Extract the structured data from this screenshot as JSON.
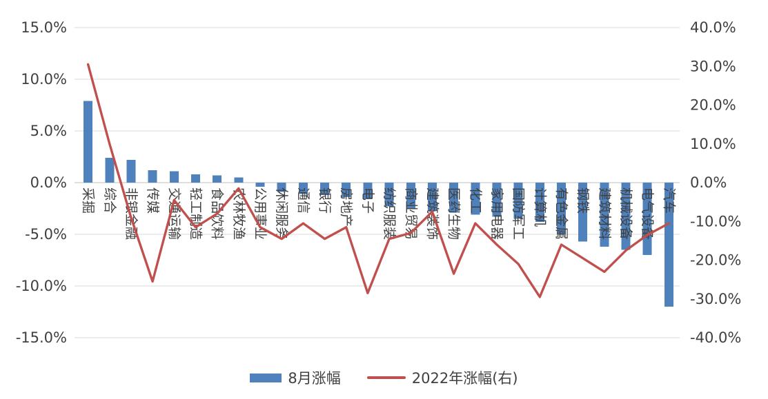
{
  "chart_data": {
    "type": "bar",
    "subtype": "combo-bar-line-dual-axis",
    "title": "",
    "categories": [
      "采掘",
      "综合",
      "非银金融",
      "传媒",
      "交通运输",
      "轻工制造",
      "食品饮料",
      "农林牧渔",
      "公用事业",
      "休闲服务",
      "通信",
      "银行",
      "房地产",
      "电子",
      "纺织服装",
      "商业贸易",
      "建筑装饰",
      "医药生物",
      "化工",
      "家用电器",
      "国防军工",
      "计算机",
      "有色金属",
      "钢铁",
      "建筑材料",
      "机械设备",
      "电气设备",
      "汽车"
    ],
    "series": [
      {
        "name": "8月涨幅",
        "type": "bar",
        "axis": "left",
        "color": "#4F81BD",
        "values": [
          7.9,
          2.4,
          2.2,
          1.2,
          1.1,
          0.8,
          0.7,
          0.5,
          -0.4,
          -0.9,
          -1.1,
          -1.2,
          -1.4,
          -1.6,
          -2.3,
          -2.5,
          -2.7,
          -2.9,
          -3.1,
          -3.3,
          -3.5,
          -3.8,
          -5.0,
          -5.7,
          -6.2,
          -6.5,
          -7.0,
          -12.0
        ]
      },
      {
        "name": "2022年涨幅(右)",
        "type": "line",
        "axis": "right",
        "color": "#C0504D",
        "values": [
          30.5,
          10.0,
          -9.0,
          -25.5,
          -4.5,
          -11.5,
          -8.0,
          -1.5,
          -11.5,
          -14.5,
          -10.5,
          -14.5,
          -11.5,
          -28.5,
          -14.5,
          -13.0,
          -7.5,
          -23.5,
          -10.5,
          -16.0,
          -21.0,
          -29.5,
          -16.0,
          -19.5,
          -23.0,
          -17.5,
          -13.5,
          -10.5
        ]
      }
    ],
    "left_axis": {
      "tick_labels": [
        "15.0%",
        "10.0%",
        "5.0%",
        "0.0%",
        "-5.0%",
        "-10.0%",
        "-15.0%"
      ],
      "tick_values": [
        15,
        10,
        5,
        0,
        -5,
        -10,
        -15
      ],
      "min": -15,
      "max": 15
    },
    "right_axis": {
      "tick_labels": [
        "40.0%",
        "30.0%",
        "20.0%",
        "10.0%",
        "0.0%",
        "-10.0%",
        "-20.0%",
        "-30.0%",
        "-40.0%"
      ],
      "tick_values": [
        40,
        30,
        20,
        10,
        0,
        -10,
        -20,
        -30,
        -40
      ],
      "min": -40,
      "max": 40
    },
    "grid": true,
    "legend_position": "bottom"
  },
  "colors": {
    "bar": "#4F81BD",
    "line": "#C0504D",
    "grid": "#D9D9D9",
    "zero_line": "#BFBFBF",
    "axis_text": "#404040",
    "background": "#FFFFFF"
  }
}
